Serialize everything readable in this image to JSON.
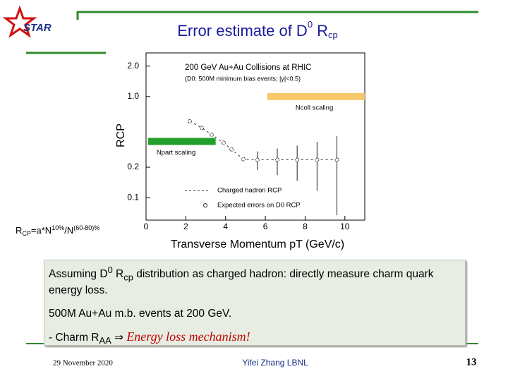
{
  "logo": "STAR",
  "title": [
    "Error estimate of D",
    "0",
    " R",
    "cp"
  ],
  "formula": [
    "R",
    "CP",
    "=a*N",
    "10%",
    "/N",
    "(60-80)%"
  ],
  "chart_data": {
    "type": "scatter",
    "title": "200 GeV Au+Au Collisions at RHIC",
    "subtitle": "(D0: 500M minimum bias events; |y|<0.5)",
    "x_label": "Transverse Momentum pT (GeV/c)",
    "y_label": "RCP",
    "log_y": true,
    "xlim": [
      0,
      11
    ],
    "ylim": [
      0.06,
      2.7
    ],
    "xticks": [
      0,
      2,
      4,
      6,
      8,
      10
    ],
    "yticks": [
      0.1,
      0.2,
      {
        "value": 1,
        "label": "1.0"
      },
      {
        "value": 2,
        "label": "2.0"
      }
    ],
    "bands": [
      {
        "name": "Npart scaling",
        "color": "#22a02a",
        "x": [
          0.1,
          3.5
        ],
        "value": 0.36
      },
      {
        "name": "Ncoll scaling",
        "color": "#f7c86a",
        "x": [
          6.1,
          11
        ],
        "value": 1.0
      }
    ],
    "x": [
      2.2,
      2.8,
      3.3,
      3.9,
      4.3,
      4.9,
      5.6,
      6.6,
      7.6,
      8.6,
      9.6
    ],
    "series": [
      {
        "name": "Charged hadron RCP",
        "color": "#333333",
        "values": [
          0.57,
          0.49,
          0.42,
          0.35,
          0.3,
          0.24,
          0.237,
          0.237,
          0.237,
          0.237,
          0.237
        ]
      },
      {
        "name": "Expected errors on D0 RCP",
        "color": "#222222",
        "values": [
          0.57,
          0.49,
          0.42,
          0.35,
          0.3,
          0.24,
          0.237,
          0.237,
          0.237,
          0.237,
          0.237
        ],
        "errors": [
          null,
          null,
          null,
          null,
          null,
          null,
          0.05,
          0.07,
          0.09,
          0.12,
          0.17
        ]
      }
    ]
  },
  "box": {
    "paragraph1": [
      "Assuming D",
      "0",
      " R",
      "cp",
      " distribution as charged hadron: directly measure charm quark energy loss."
    ],
    "paragraph2": "500M Au+Au m.b. events at 200 GeV.",
    "paragraph3": [
      "- Charm R",
      "AA",
      " ⇒ ",
      "Energy loss mechanism!"
    ]
  },
  "footer": {
    "date": "29 November 2020",
    "author": "Yifei Zhang  LBNL",
    "page": "13"
  }
}
